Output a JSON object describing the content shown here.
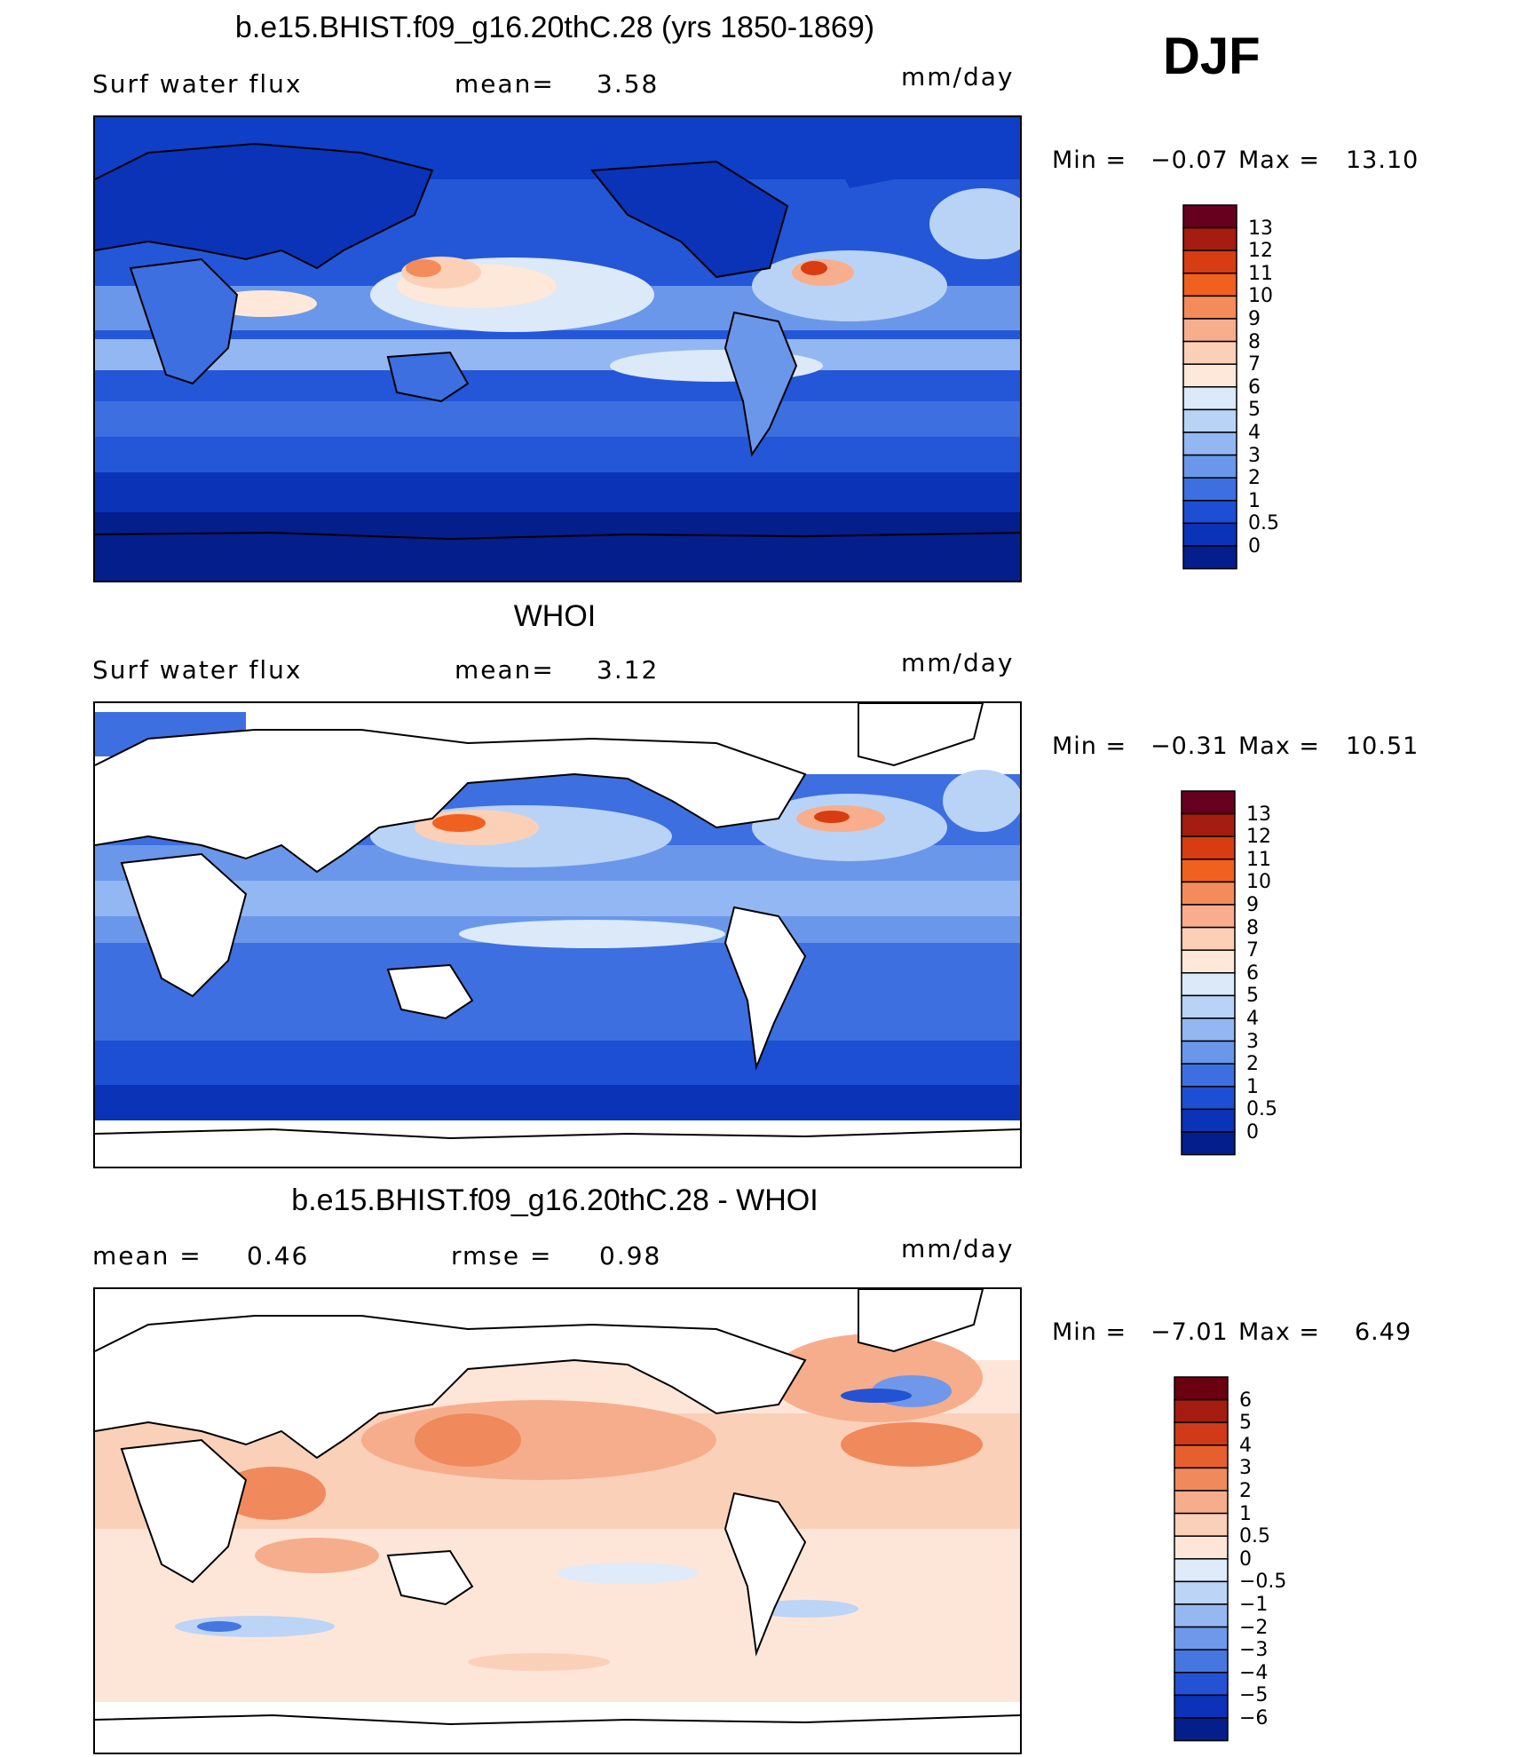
{
  "season": "DJF",
  "units": "mm/day",
  "panels": [
    {
      "title": "b.e15.BHIST.f09_g16.20thC.28 (yrs 1850-1869)",
      "left_label": "Surf water flux",
      "center_label": "mean=",
      "center_value": "3.58",
      "units": "mm/day",
      "min_label": "Min =",
      "min_value": "−0.07",
      "max_label": "Max =",
      "max_value": "13.10",
      "colorbar": [
        "13",
        "12",
        "11",
        "10",
        "9",
        "8",
        "7",
        "6",
        "5",
        "4",
        "3",
        "2",
        "1",
        "0.5",
        "0"
      ]
    },
    {
      "title": "WHOI",
      "left_label": "Surf water flux",
      "center_label": "mean=",
      "center_value": "3.12",
      "units": "mm/day",
      "min_label": "Min =",
      "min_value": "−0.31",
      "max_label": "Max =",
      "max_value": "10.51",
      "colorbar": [
        "13",
        "12",
        "11",
        "10",
        "9",
        "8",
        "7",
        "6",
        "5",
        "4",
        "3",
        "2",
        "1",
        "0.5",
        "0"
      ]
    },
    {
      "title": "b.e15.BHIST.f09_g16.20thC.28 - WHOI",
      "left_label": "mean =",
      "left_value": "0.46",
      "center_label": "rmse =",
      "center_value": "0.98",
      "units": "mm/day",
      "min_label": "Min =",
      "min_value": "−7.01",
      "max_label": "Max =",
      "max_value": "6.49",
      "colorbar": [
        "6",
        "5",
        "4",
        "3",
        "2",
        "1",
        "0.5",
        "0",
        "−0.5",
        "−1",
        "−2",
        "−3",
        "−4",
        "−5",
        "−6"
      ]
    }
  ],
  "colors": {
    "abs_scale": [
      "#67001f",
      "#a51c10",
      "#d73c12",
      "#f0601f",
      "#f48b5a",
      "#f8ae8c",
      "#fbd0b7",
      "#fde8da",
      "#dbe9f8",
      "#b9d3f6",
      "#93b7f2",
      "#6a97ea",
      "#3d6fe0",
      "#1d4fd4",
      "#0a33b8",
      "#041e8c"
    ],
    "diff_scale": [
      "#6b0010",
      "#a51c10",
      "#d03a18",
      "#e6602f",
      "#f0895c",
      "#f6ad8c",
      "#fbd0b9",
      "#fde6d8",
      "#dfeafa",
      "#bcd4f6",
      "#96b8f1",
      "#6f98ea",
      "#4676e0",
      "#2352d3",
      "#0b32b8",
      "#041e8c"
    ]
  },
  "chart_data": [
    {
      "type": "heatmap",
      "title": "b.e15.BHIST.f09_g16.20thC.28 (yrs 1850-1869)",
      "variable": "Surf water flux",
      "units": "mm/day",
      "mean": 3.58,
      "min": -0.07,
      "max": 13.1,
      "color_levels": [
        0,
        0.5,
        1,
        2,
        3,
        4,
        5,
        6,
        7,
        8,
        9,
        10,
        11,
        12,
        13
      ]
    },
    {
      "type": "heatmap",
      "title": "WHOI",
      "variable": "Surf water flux",
      "units": "mm/day",
      "mean": 3.12,
      "min": -0.31,
      "max": 10.51,
      "color_levels": [
        0,
        0.5,
        1,
        2,
        3,
        4,
        5,
        6,
        7,
        8,
        9,
        10,
        11,
        12,
        13
      ]
    },
    {
      "type": "heatmap",
      "title": "b.e15.BHIST.f09_g16.20thC.28 - WHOI",
      "units": "mm/day",
      "mean": 0.46,
      "rmse": 0.98,
      "min": -7.01,
      "max": 6.49,
      "color_levels": [
        -6,
        -5,
        -4,
        -3,
        -2,
        -1,
        -0.5,
        0,
        0.5,
        1,
        2,
        3,
        4,
        5,
        6
      ]
    }
  ]
}
